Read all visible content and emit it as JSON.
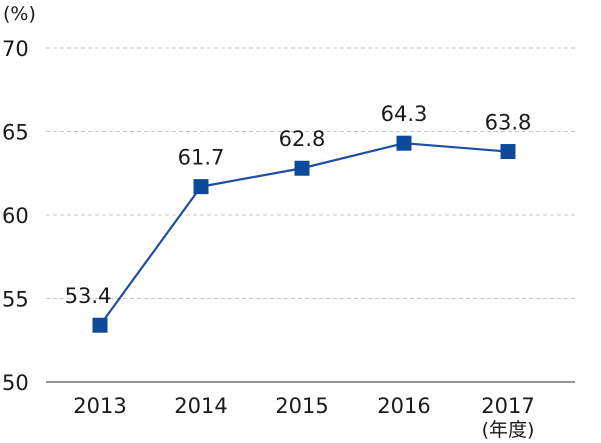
{
  "chart_data": {
    "type": "line",
    "categories": [
      "2013",
      "2014",
      "2015",
      "2016",
      "2017"
    ],
    "series": [
      {
        "values": [
          53.4,
          61.7,
          62.8,
          64.3,
          63.8
        ],
        "data_labels": [
          "53.4",
          "61.7",
          "62.8",
          "64.3",
          "63.8"
        ]
      }
    ],
    "y_unit_label": "(%)",
    "x_unit_label": "(年度)",
    "ylim": [
      50,
      70
    ],
    "y_ticks": [
      "50",
      "55",
      "60",
      "65",
      "70"
    ],
    "grid": true,
    "legend": "none"
  },
  "colors": {
    "line": "#1f4ea3",
    "marker": "#0d4a9c",
    "highlight_label": "#3a6fb0",
    "grid": "#c8c8c8",
    "axis": "#555555",
    "text": "#1a1a1a"
  }
}
